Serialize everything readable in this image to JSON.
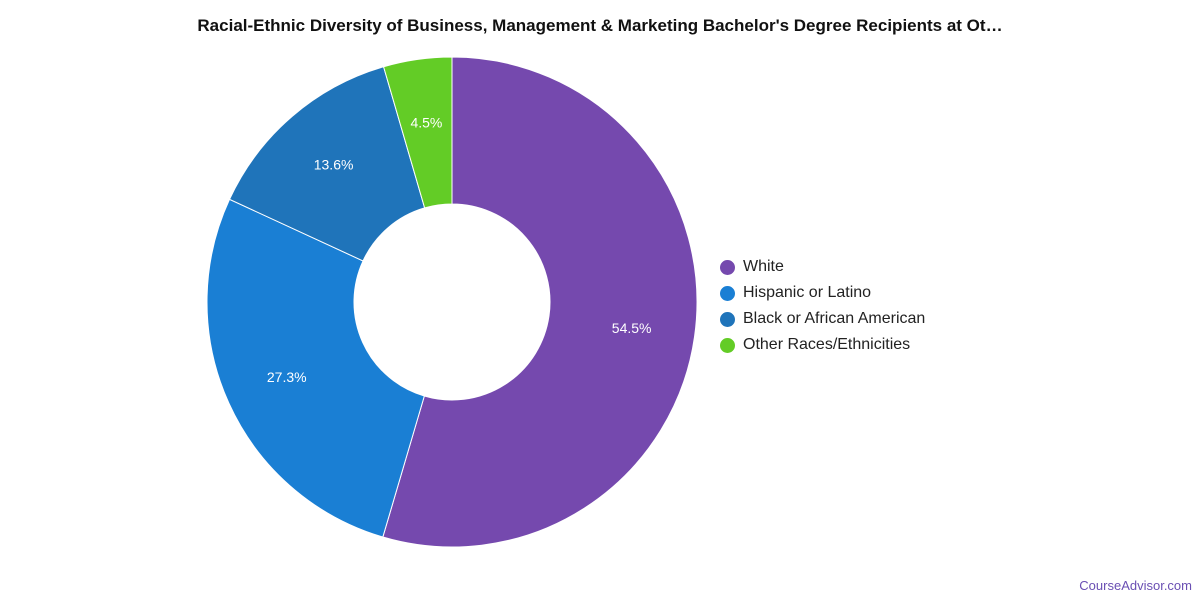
{
  "chart_data": {
    "type": "pie",
    "title": "Racial-Ethnic Diversity of Business, Management & Marketing Bachelor's Degree Recipients at Ot…",
    "donut": true,
    "legend_position": "right",
    "slices": [
      {
        "name": "White",
        "value": 54.5,
        "label": "54.5%",
        "color": "#7549ae"
      },
      {
        "name": "Hispanic or Latino",
        "value": 27.3,
        "label": "27.3%",
        "color": "#1a7fd4"
      },
      {
        "name": "Black or African American",
        "value": 13.6,
        "label": "13.6%",
        "color": "#1f74ba"
      },
      {
        "name": "Other Races/Ethnicities",
        "value": 4.5,
        "label": "4.5%",
        "color": "#63cc26"
      }
    ]
  },
  "credit": "CourseAdvisor.com"
}
